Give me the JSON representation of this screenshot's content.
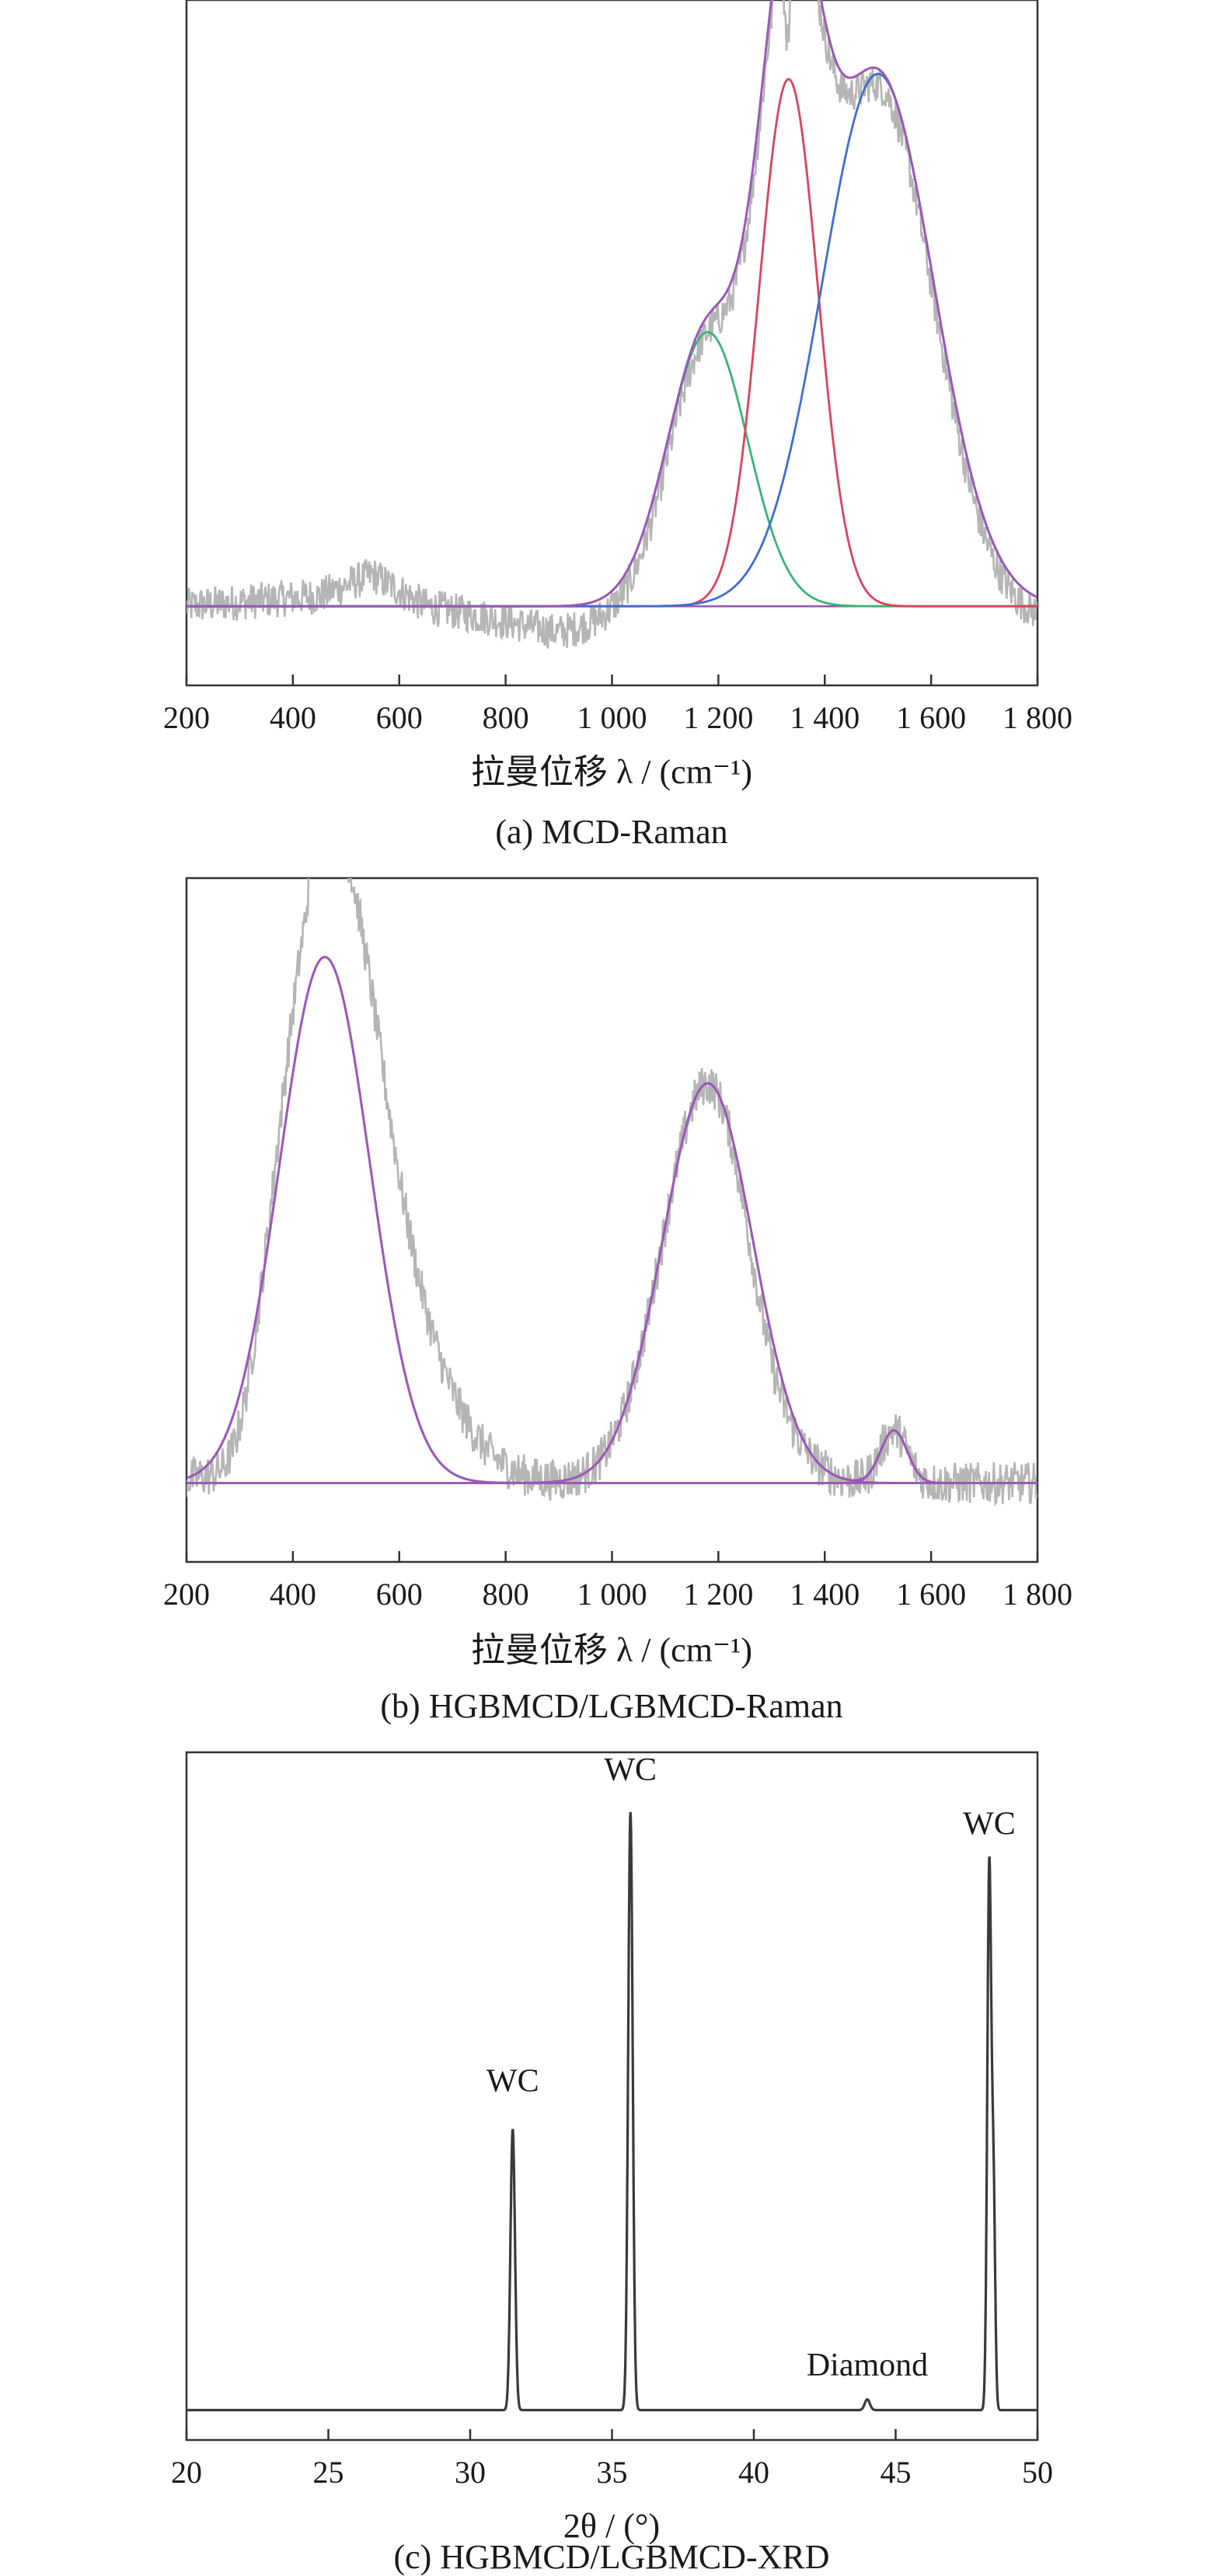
{
  "chart_data": [
    {
      "type": "line",
      "caption": "(a) MCD-Raman",
      "xlabel": "拉曼位移 λ / (cm⁻¹)",
      "ylabel": "",
      "xlim": [
        200,
        1800
      ],
      "ylim": [
        -0.15,
        1.15
      ],
      "xticks": [
        200,
        400,
        600,
        800,
        1000,
        1200,
        1400,
        1600,
        1800
      ],
      "xtick_labels": [
        "200",
        "400",
        "600",
        "800",
        "1 000",
        "1 200",
        "1 400",
        "1 600",
        "1 800"
      ],
      "grid": false,
      "colors": {
        "raw": "#b5b5b5",
        "fit": "#9b59b6",
        "d_band": "#3cb371",
        "peak_1332": "#d9445a",
        "g_band": "#3d6fd1"
      },
      "series": [
        {
          "kind": "raw",
          "noise": 0.035,
          "baseline": [
            [
              200,
              0.0
            ],
            [
              450,
              0.02
            ],
            [
              550,
              0.06
            ],
            [
              650,
              0.0
            ],
            [
              760,
              -0.02
            ],
            [
              900,
              -0.05
            ],
            [
              1000,
              -0.03
            ]
          ],
          "spike": {
            "x": 1330,
            "y": 1.1
          }
        },
        {
          "kind": "fit-sum"
        },
        {
          "kind": "component",
          "center": 1180,
          "height": 0.52,
          "width": 75,
          "color_key": "d_band"
        },
        {
          "kind": "component",
          "center": 1332,
          "height": 1.0,
          "width": 55,
          "color_key": "peak_1332"
        },
        {
          "kind": "component",
          "center": 1500,
          "height": 1.01,
          "width": 105,
          "color_key": "g_band"
        }
      ],
      "baseline_line": {
        "y": 0.0,
        "color_key": "fit"
      },
      "annotations": []
    },
    {
      "type": "line",
      "caption": "(b) HGBMCD/LGBMCD-Raman",
      "xlabel": "拉曼位移 λ / (cm⁻¹)",
      "ylabel": "",
      "xlim": [
        200,
        1800
      ],
      "ylim": [
        -0.15,
        1.15
      ],
      "xticks": [
        200,
        400,
        600,
        800,
        1000,
        1200,
        1400,
        1600,
        1800
      ],
      "xtick_labels": [
        "200",
        "400",
        "600",
        "800",
        "1 000",
        "1 200",
        "1 400",
        "1 600",
        "1 800"
      ],
      "grid": false,
      "colors": {
        "raw": "#b5b5b5",
        "fit": "#9b59b6",
        "baseline": "#3cb371"
      },
      "series": [
        {
          "kind": "raw",
          "noise": 0.04,
          "shoulders": [
            [
              560,
              0.35,
              110
            ],
            [
              1290,
              -0.05,
              40
            ],
            [
              300,
              -0.08,
              40
            ]
          ],
          "spike": {
            "x": 440,
            "y": 1.08
          }
        },
        {
          "kind": "fit-sum"
        },
        {
          "kind": "component",
          "center": 460,
          "height": 1.0,
          "width": 85,
          "color_key": "fit"
        },
        {
          "kind": "component",
          "center": 1180,
          "height": 0.76,
          "width": 85,
          "color_key": "fit"
        },
        {
          "kind": "component",
          "center": 1530,
          "height": 0.1,
          "width": 25,
          "color_key": "fit"
        }
      ],
      "baseline_line": {
        "y": 0.0,
        "color_key": "baseline"
      },
      "annotations": []
    },
    {
      "type": "line",
      "caption": "(c) HGBMCD/LGBMCD-XRD",
      "xlabel": "2θ / (°)",
      "ylabel": "",
      "xlim": [
        20,
        50
      ],
      "ylim": [
        -0.05,
        1.1
      ],
      "xticks": [
        20,
        25,
        30,
        35,
        40,
        45,
        50
      ],
      "xtick_labels": [
        "20",
        "25",
        "30",
        "35",
        "40",
        "45",
        "50"
      ],
      "grid": false,
      "colors": {
        "trace": "#3a3a3a"
      },
      "series": [
        {
          "kind": "peaks",
          "baseline": 0.0,
          "peaks": [
            [
              31.5,
              0.47,
              0.08
            ],
            [
              35.65,
              1.0,
              0.08
            ],
            [
              44.0,
              0.018,
              0.09
            ],
            [
              48.3,
              0.91,
              0.07
            ],
            [
              48.45,
              0.35,
              0.06
            ]
          ]
        }
      ],
      "annotations": [
        {
          "text": "WC",
          "x": 31.5,
          "y": 0.52
        },
        {
          "text": "WC",
          "x": 35.65,
          "y": 1.04
        },
        {
          "text": "Diamond",
          "x": 44.0,
          "y": 0.045
        },
        {
          "text": "WC",
          "x": 48.3,
          "y": 0.95
        }
      ]
    }
  ]
}
